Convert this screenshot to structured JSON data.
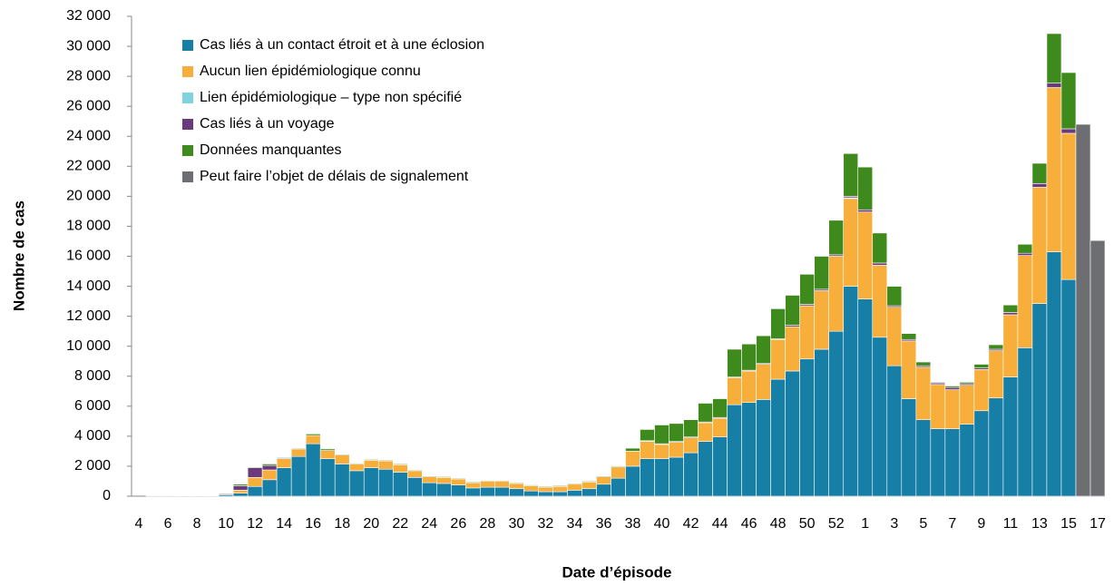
{
  "chart_data": {
    "type": "stacked_bar",
    "y_label": "Nombre de cas",
    "x_label": "Date d’épisode",
    "categories": [
      "4",
      null,
      "6",
      null,
      "8",
      null,
      "10",
      null,
      "12",
      null,
      "14",
      null,
      "16",
      null,
      "18",
      null,
      "20",
      null,
      "22",
      null,
      "24",
      null,
      "26",
      null,
      "28",
      null,
      "30",
      null,
      "32",
      null,
      "34",
      null,
      "36",
      null,
      "38",
      null,
      "40",
      null,
      "42",
      null,
      "44",
      null,
      "46",
      null,
      "48",
      null,
      "50",
      null,
      "52",
      null,
      "1",
      null,
      "3",
      null,
      "5",
      null,
      "7",
      null,
      "9",
      null,
      "11",
      null,
      "13",
      null,
      "15",
      null,
      "17"
    ],
    "series": [
      {
        "name": "Cas liés à un contact étroit et à une éclosion",
        "color": "#177ea6",
        "values": [
          0,
          10,
          10,
          20,
          20,
          30,
          100,
          200,
          650,
          1100,
          1900,
          2650,
          3500,
          2500,
          2150,
          1700,
          1900,
          1800,
          1600,
          1250,
          900,
          850,
          750,
          550,
          600,
          600,
          500,
          350,
          300,
          300,
          400,
          500,
          800,
          1200,
          2000,
          2500,
          2500,
          2600,
          2900,
          3650,
          3950,
          6100,
          6250,
          6450,
          7800,
          8350,
          9150,
          9800,
          11000,
          14000,
          13150,
          10600,
          8700,
          6500,
          5100,
          4500,
          4500,
          4800,
          5700,
          6550,
          7950,
          9900,
          12850,
          16300,
          14450,
          0,
          0
        ]
      },
      {
        "name": "Aucun lien épidémiologique connu",
        "color": "#f7ae3b",
        "values": [
          0,
          0,
          0,
          0,
          0,
          0,
          50,
          200,
          600,
          650,
          600,
          500,
          550,
          550,
          600,
          450,
          500,
          550,
          500,
          450,
          400,
          400,
          400,
          350,
          400,
          400,
          350,
          350,
          300,
          350,
          400,
          450,
          500,
          750,
          1000,
          1150,
          950,
          1000,
          1000,
          1250,
          1250,
          1800,
          2100,
          2350,
          2650,
          2950,
          3550,
          3900,
          5000,
          5850,
          5800,
          4800,
          3900,
          3850,
          3500,
          2950,
          2600,
          2600,
          2750,
          3150,
          4150,
          6150,
          7750,
          10950,
          9750,
          0,
          0
        ]
      },
      {
        "name": "Lien épidémiologique – type non spécifié",
        "color": "#7fd3e1",
        "values": [
          0,
          0,
          0,
          0,
          0,
          0,
          0,
          0,
          0,
          0,
          0,
          0,
          0,
          0,
          0,
          0,
          0,
          0,
          0,
          0,
          0,
          0,
          0,
          0,
          0,
          0,
          0,
          0,
          0,
          0,
          0,
          0,
          0,
          0,
          0,
          50,
          0,
          0,
          0,
          0,
          0,
          0,
          0,
          0,
          0,
          0,
          0,
          0,
          0,
          50,
          0,
          0,
          0,
          0,
          0,
          0,
          0,
          0,
          0,
          0,
          0,
          0,
          0,
          0,
          0,
          0,
          0
        ]
      },
      {
        "name": "Cas liés à un voyage",
        "color": "#6a3a7c",
        "values": [
          0,
          0,
          0,
          0,
          0,
          0,
          50,
          300,
          650,
          300,
          50,
          0,
          0,
          0,
          0,
          0,
          0,
          0,
          0,
          0,
          0,
          0,
          0,
          0,
          0,
          0,
          0,
          0,
          0,
          0,
          0,
          0,
          0,
          0,
          0,
          0,
          50,
          50,
          50,
          50,
          50,
          50,
          50,
          50,
          50,
          100,
          100,
          100,
          100,
          100,
          150,
          150,
          100,
          100,
          100,
          100,
          150,
          100,
          100,
          100,
          150,
          150,
          250,
          300,
          300,
          0,
          0
        ]
      },
      {
        "name": "Données manquantes",
        "color": "#3f8a1d",
        "values": [
          0,
          0,
          0,
          0,
          0,
          0,
          0,
          100,
          50,
          100,
          50,
          50,
          100,
          100,
          50,
          50,
          50,
          50,
          50,
          50,
          50,
          50,
          50,
          50,
          50,
          50,
          50,
          50,
          50,
          50,
          50,
          50,
          50,
          50,
          200,
          750,
          1250,
          1200,
          1150,
          1250,
          1250,
          1850,
          1750,
          1850,
          2000,
          2000,
          2000,
          2200,
          2300,
          2850,
          2850,
          2000,
          1300,
          400,
          250,
          50,
          100,
          100,
          250,
          300,
          500,
          600,
          1350,
          3300,
          3750,
          0,
          0
        ]
      },
      {
        "name": "Peut faire l’objet de délais de signalement",
        "color": "#6d6e72",
        "values": [
          0,
          0,
          0,
          0,
          0,
          0,
          0,
          0,
          0,
          0,
          0,
          0,
          0,
          0,
          0,
          0,
          0,
          0,
          0,
          0,
          0,
          0,
          0,
          0,
          0,
          0,
          0,
          0,
          0,
          0,
          0,
          0,
          0,
          0,
          0,
          0,
          0,
          0,
          0,
          0,
          0,
          0,
          0,
          0,
          0,
          0,
          0,
          0,
          0,
          0,
          0,
          0,
          0,
          0,
          0,
          0,
          0,
          0,
          0,
          0,
          0,
          0,
          0,
          0,
          0,
          24800,
          17050
        ]
      }
    ],
    "ylim": [
      0,
      32000
    ],
    "yticks": [
      0,
      {
        "value": 2000,
        "label": "2 000"
      },
      {
        "value": 4000,
        "label": "4 000"
      },
      {
        "value": 6000,
        "label": "6 000"
      },
      {
        "value": 8000,
        "label": "8 000"
      },
      {
        "value": 10000,
        "label": "10 000"
      },
      {
        "value": 12000,
        "label": "12 000"
      },
      {
        "value": 14000,
        "label": "14 000"
      },
      {
        "value": 16000,
        "label": "16 000"
      },
      {
        "value": 18000,
        "label": "18 000"
      },
      {
        "value": 20000,
        "label": "20 000"
      },
      {
        "value": 22000,
        "label": "22 000"
      },
      {
        "value": 24000,
        "label": "24 000"
      },
      {
        "value": 26000,
        "label": "26 000"
      },
      {
        "value": 28000,
        "label": "28 000"
      },
      {
        "value": 30000,
        "label": "30 000"
      },
      {
        "value": 32000,
        "label": "32 000"
      }
    ],
    "grid": false,
    "legend": "upper left"
  }
}
